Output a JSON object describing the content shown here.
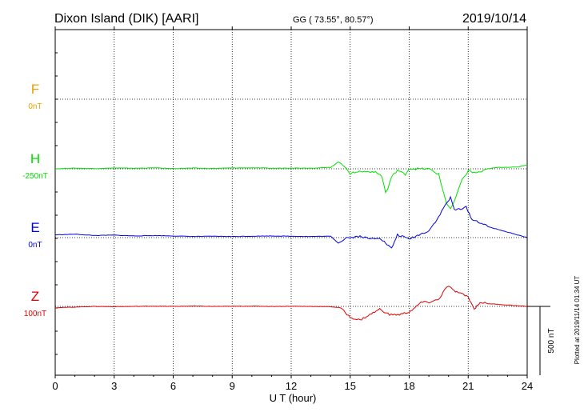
{
  "header": {
    "station": "Dixon Island (DIK)  [AARI]",
    "coords": "GG ( 73.55°,  80.57°)",
    "date": "2019/10/14"
  },
  "footer": {
    "plotted": "Plotted at 2019/11/14 01:34 UT",
    "scale_label": "500 nT"
  },
  "colors": {
    "F": "#f0a000",
    "H": "#00e000",
    "E": "#0000e0",
    "Z": "#e00000"
  },
  "chart_data": {
    "type": "line",
    "xlabel": "U T (hour)",
    "xlim": [
      0,
      24
    ],
    "xticks": [
      0,
      3,
      6,
      9,
      12,
      15,
      18,
      21,
      24
    ],
    "grid": true,
    "scale_bar_nT": 500,
    "series": [
      {
        "name": "F",
        "baseline_label": "0nT",
        "baseline_value": 0,
        "values": []
      },
      {
        "name": "H",
        "baseline_label": "-250nT",
        "baseline_value": -250,
        "x": [
          0,
          1,
          2,
          3,
          4,
          5,
          6,
          7,
          8,
          9,
          10,
          11,
          12,
          13,
          14,
          14.4,
          14.8,
          15,
          15.3,
          15.8,
          16.2,
          16.6,
          16.8,
          16.9,
          17.1,
          17.4,
          17.8,
          18,
          18.5,
          19,
          19.5,
          19.7,
          19.9,
          20.1,
          20.3,
          20.5,
          20.7,
          20.9,
          21,
          21.3,
          21.7,
          22,
          22.5,
          23,
          23.5,
          24
        ],
        "values": [
          -250,
          -245,
          -248,
          -244,
          -246,
          -243,
          -248,
          -245,
          -247,
          -244,
          -243,
          -246,
          -244,
          -245,
          -240,
          -200,
          -240,
          -290,
          -270,
          -270,
          -270,
          -300,
          -420,
          -400,
          -310,
          -260,
          -290,
          -250,
          -250,
          -250,
          -290,
          -400,
          -500,
          -540,
          -490,
          -400,
          -330,
          -290,
          -260,
          -280,
          -270,
          -250,
          -240,
          -238,
          -238,
          -220
        ]
      },
      {
        "name": "E",
        "baseline_label": "0nT",
        "baseline_value": 0,
        "x": [
          0,
          1,
          2,
          3,
          4,
          5,
          6,
          7,
          8,
          9,
          10,
          11,
          12,
          13,
          14,
          14.4,
          14.8,
          15,
          15.5,
          16,
          16.5,
          16.8,
          17.1,
          17.4,
          17.8,
          18,
          18.5,
          19,
          19.5,
          19.8,
          20.1,
          20.3,
          20.6,
          20.9,
          21.2,
          21.6,
          22,
          22.5,
          23,
          23.5,
          24
        ],
        "values": [
          20,
          25,
          15,
          18,
          12,
          15,
          12,
          8,
          10,
          8,
          10,
          12,
          10,
          8,
          10,
          -40,
          0,
          0,
          10,
          -10,
          0,
          -40,
          -80,
          20,
          0,
          -10,
          20,
          50,
          150,
          230,
          290,
          200,
          210,
          220,
          130,
          110,
          80,
          60,
          40,
          20,
          0
        ]
      },
      {
        "name": "Z",
        "baseline_label": "100nT",
        "baseline_value": 100,
        "x": [
          0,
          1,
          2,
          3,
          4,
          5,
          6,
          7,
          8,
          9,
          10,
          11,
          12,
          13,
          14,
          14.5,
          15,
          15.5,
          16,
          16.5,
          17,
          17.5,
          18,
          18.3,
          18.6,
          19,
          19.5,
          19.8,
          20,
          20.2,
          20.5,
          21,
          21.3,
          21.6,
          22,
          23,
          24
        ],
        "values": [
          90,
          95,
          100,
          98,
          100,
          102,
          100,
          103,
          100,
          101,
          102,
          100,
          101,
          100,
          98,
          90,
          20,
          0,
          40,
          80,
          40,
          40,
          60,
          90,
          130,
          130,
          150,
          220,
          250,
          220,
          200,
          170,
          80,
          130,
          120,
          110,
          100
        ]
      }
    ]
  }
}
